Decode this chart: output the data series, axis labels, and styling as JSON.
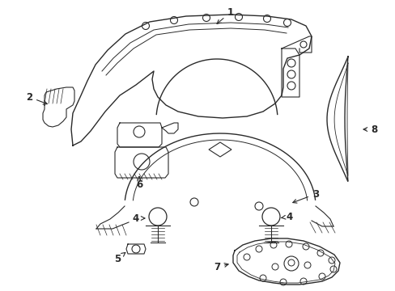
{
  "bg_color": "#ffffff",
  "line_color": "#2a2a2a",
  "lw": 1.0,
  "label_fontsize": 8.5
}
